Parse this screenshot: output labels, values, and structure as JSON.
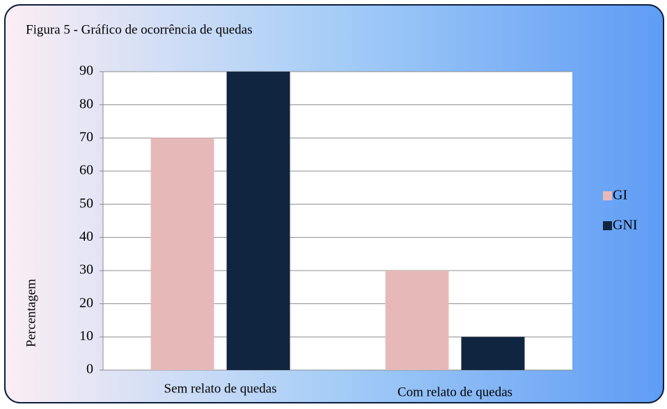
{
  "chart_data": {
    "type": "bar",
    "title": "Figura 5 - Gráfico de ocorrência de quedas",
    "y_label": "Percentagem",
    "categories": [
      "Sem relato de quedas",
      "Com relato de quedas"
    ],
    "series": [
      {
        "name": "GI",
        "color": "#e6b9b8",
        "values": [
          70,
          30
        ]
      },
      {
        "name": "GNI",
        "color": "#10253f",
        "values": [
          90,
          10
        ]
      }
    ],
    "ylim": [
      0,
      90
    ],
    "yticks": [
      0,
      10,
      20,
      30,
      40,
      50,
      60,
      70,
      80,
      90
    ],
    "grid": true,
    "legend": "right"
  }
}
